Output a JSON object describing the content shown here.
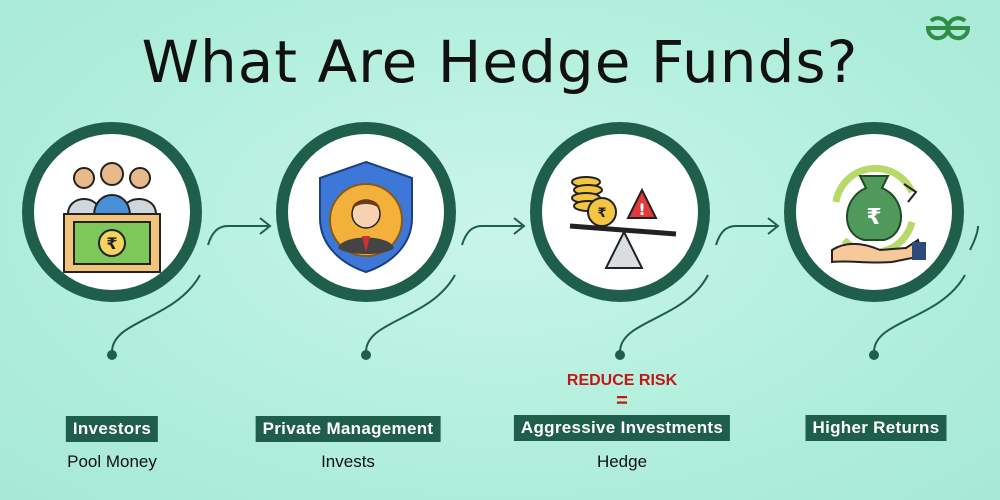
{
  "title": "What Are Hedge Funds?",
  "logo_text": "GG",
  "steps": [
    {
      "label": "Investors",
      "sub": "Pool Money",
      "icon": "investors-icon"
    },
    {
      "label": "Private Management",
      "sub": "Invests",
      "icon": "manager-shield-icon"
    },
    {
      "label": "Aggressive Investments",
      "sub": "Hedge",
      "icon": "risk-balance-icon",
      "top_text": "REDUCE RISK",
      "eq": "="
    },
    {
      "label": "Higher Returns",
      "sub": "",
      "icon": "money-bag-returns-icon"
    }
  ],
  "colors": {
    "accent": "#1f5e4a",
    "background": "#b3efdd",
    "risk_text": "#c01818",
    "logo": "#2f8d46"
  }
}
